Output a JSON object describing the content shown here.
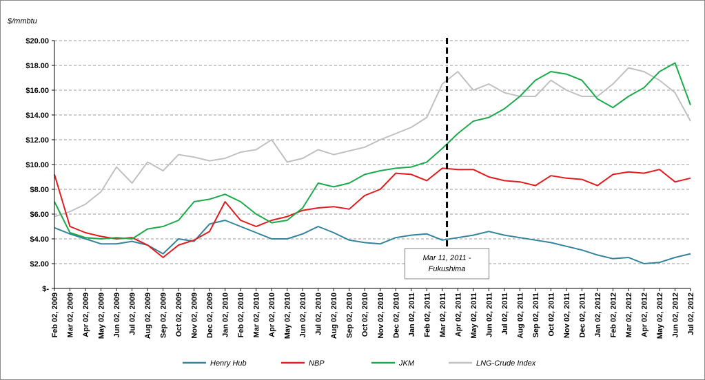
{
  "chart_data": {
    "type": "line",
    "unit_label": "$/mmbtu",
    "ylim": [
      0,
      20
    ],
    "y_ticks": [
      {
        "value": 0,
        "label": "$-"
      },
      {
        "value": 2,
        "label": "$2.00"
      },
      {
        "value": 4,
        "label": "$4.00"
      },
      {
        "value": 6,
        "label": "$6.00"
      },
      {
        "value": 8,
        "label": "$8.00"
      },
      {
        "value": 10,
        "label": "$10.00"
      },
      {
        "value": 12,
        "label": "$12.00"
      },
      {
        "value": 14,
        "label": "$14.00"
      },
      {
        "value": 16,
        "label": "$16.00"
      },
      {
        "value": 18,
        "label": "$18.00"
      },
      {
        "value": 20,
        "label": "$20.00"
      }
    ],
    "grid": "horizontal-dashed",
    "x_ticks": [
      "Feb 02, 2009",
      "Mar 02, 2009",
      "Apr 02, 2009",
      "May 02, 2009",
      "Jun 02, 2009",
      "Jul 02, 2009",
      "Aug 02, 2009",
      "Sep 02, 2009",
      "Oct 02, 2009",
      "Nov 02, 2009",
      "Dec 02, 2009",
      "Jan 02, 2010",
      "Feb 02, 2010",
      "Mar 02, 2010",
      "Apr 02, 2010",
      "May 02, 2010",
      "Jun 02, 2010",
      "Jul 02, 2010",
      "Aug 02, 2010",
      "Sep 02, 2010",
      "Oct 02, 2010",
      "Nov 02, 2010",
      "Dec 02, 2010",
      "Jan 02, 2011",
      "Feb 02, 2011",
      "Mar 02, 2011",
      "Apr 02, 2011",
      "May 02, 2011",
      "Jun 02, 2011",
      "Jul 02, 2011",
      "Aug 02, 2011",
      "Sep 02, 2011",
      "Oct 02, 2011",
      "Nov 02, 2011",
      "Dec 02, 2011",
      "Jan 02, 2012",
      "Feb 02, 2012",
      "Mar 02, 2012",
      "Apr 02, 2012",
      "May 02, 2012",
      "Jun 02, 2012",
      "Jul 02, 2012"
    ],
    "legend_position": "bottom",
    "series": [
      {
        "name": "Henry Hub",
        "color": "#31849b",
        "values": [
          4.9,
          4.4,
          4.0,
          3.6,
          3.6,
          3.8,
          3.5,
          2.8,
          4.0,
          3.8,
          5.2,
          5.5,
          5.0,
          4.5,
          4.0,
          4.0,
          4.4,
          5.0,
          4.5,
          3.9,
          3.7,
          3.6,
          4.1,
          4.3,
          4.4,
          3.9,
          4.1,
          4.3,
          4.6,
          4.3,
          4.1,
          3.9,
          3.7,
          3.4,
          3.1,
          2.7,
          2.4,
          2.5,
          2.0,
          2.1,
          2.5,
          2.8
        ]
      },
      {
        "name": "NBP",
        "color": "#e31a1c",
        "values": [
          9.2,
          5.0,
          4.5,
          4.2,
          4.0,
          4.1,
          3.5,
          2.5,
          3.5,
          3.9,
          4.6,
          7.0,
          5.5,
          5.0,
          5.5,
          5.8,
          6.3,
          6.5,
          6.6,
          6.4,
          7.5,
          8.0,
          9.3,
          9.2,
          8.7,
          9.7,
          9.6,
          9.6,
          9.0,
          8.7,
          8.6,
          8.3,
          9.1,
          8.9,
          8.8,
          8.3,
          9.2,
          9.4,
          9.3,
          9.6,
          8.6,
          8.9
        ]
      },
      {
        "name": "JKM",
        "color": "#1aaa4a",
        "values": [
          7.0,
          4.5,
          4.1,
          4.0,
          4.1,
          4.0,
          4.8,
          5.0,
          5.5,
          7.0,
          7.2,
          7.6,
          7.0,
          6.0,
          5.3,
          5.5,
          6.5,
          8.5,
          8.2,
          8.5,
          9.2,
          9.5,
          9.7,
          9.8,
          10.2,
          11.3,
          12.5,
          13.5,
          13.8,
          14.5,
          15.5,
          16.8,
          17.5,
          17.3,
          16.8,
          15.3,
          14.6,
          15.5,
          16.2,
          17.5,
          18.2,
          14.8
        ]
      },
      {
        "name": "LNG-Crude Index",
        "color": "#c0c0c0",
        "values": [
          5.8,
          6.2,
          6.8,
          7.8,
          9.8,
          8.5,
          10.2,
          9.5,
          10.8,
          10.6,
          10.3,
          10.5,
          11.0,
          11.2,
          12.0,
          10.2,
          10.5,
          11.2,
          10.8,
          11.1,
          11.4,
          12.0,
          12.5,
          13.0,
          13.8,
          16.5,
          17.5,
          16.0,
          16.5,
          15.8,
          15.5,
          15.5,
          16.8,
          16.0,
          15.5,
          15.5,
          16.5,
          17.8,
          17.5,
          16.8,
          15.8,
          13.5
        ]
      }
    ],
    "annotation": {
      "x_index": 25.3,
      "lines": [
        "Mar 11, 2011 -",
        "Fukushima"
      ]
    }
  }
}
